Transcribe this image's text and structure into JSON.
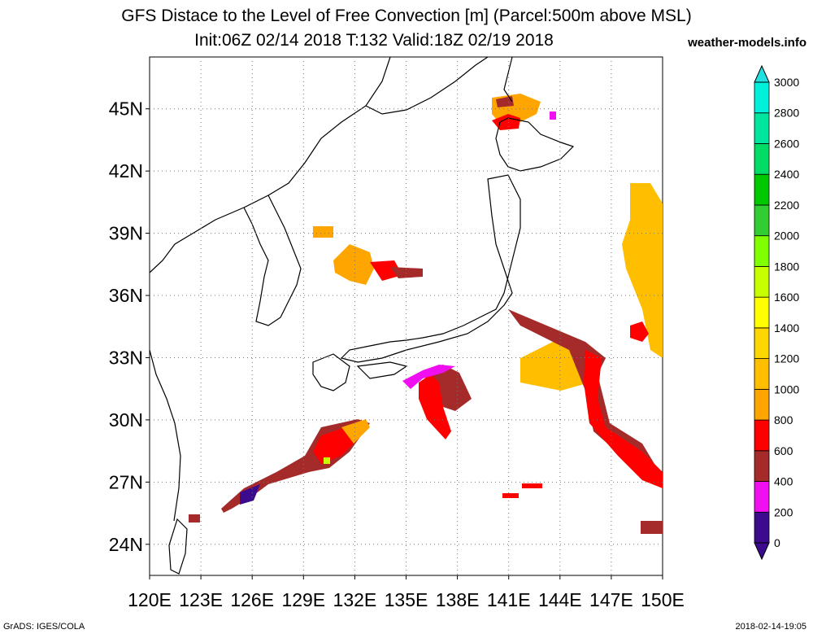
{
  "title_line1": "GFS Distace to the Level of Free Convection [m] (Parcel:500m above MSL)",
  "title_line2": "Init:06Z 02/14 2018 T:132 Valid:18Z 02/19 2018",
  "site": "weather-models.info",
  "footer_left": "GrADS: IGES/COLA",
  "footer_right": "2018-02-14-19:05",
  "map": {
    "lon_range": [
      120,
      150
    ],
    "lat_range": [
      22.5,
      47.5
    ],
    "x_ticks": [
      "120E",
      "123E",
      "126E",
      "129E",
      "132E",
      "135E",
      "138E",
      "141E",
      "144E",
      "147E",
      "150E"
    ],
    "x_tick_values": [
      120,
      123,
      126,
      129,
      132,
      135,
      138,
      141,
      144,
      147,
      150
    ],
    "y_ticks": [
      "24N",
      "27N",
      "30N",
      "33N",
      "36N",
      "39N",
      "42N",
      "45N"
    ],
    "y_tick_values": [
      24,
      27,
      30,
      33,
      36,
      39,
      42,
      45
    ],
    "grid": "dotted"
  },
  "colorbar": {
    "labels": [
      "0",
      "200",
      "400",
      "600",
      "800",
      "1000",
      "1200",
      "1400",
      "1600",
      "1800",
      "2000",
      "2200",
      "2400",
      "2600",
      "2800",
      "3000"
    ],
    "colors": [
      "#3c0a8c",
      "#f00ff0",
      "#a52a2a",
      "#ff0000",
      "#ffa500",
      "#ffbf00",
      "#ffd700",
      "#ffff00",
      "#c8ff00",
      "#7fff00",
      "#32cd32",
      "#00c800",
      "#00dc64",
      "#00e6a0",
      "#00f0dc",
      "#00ffff"
    ],
    "under_color": "#3c0a8c",
    "over_color": "#20e0e0"
  }
}
